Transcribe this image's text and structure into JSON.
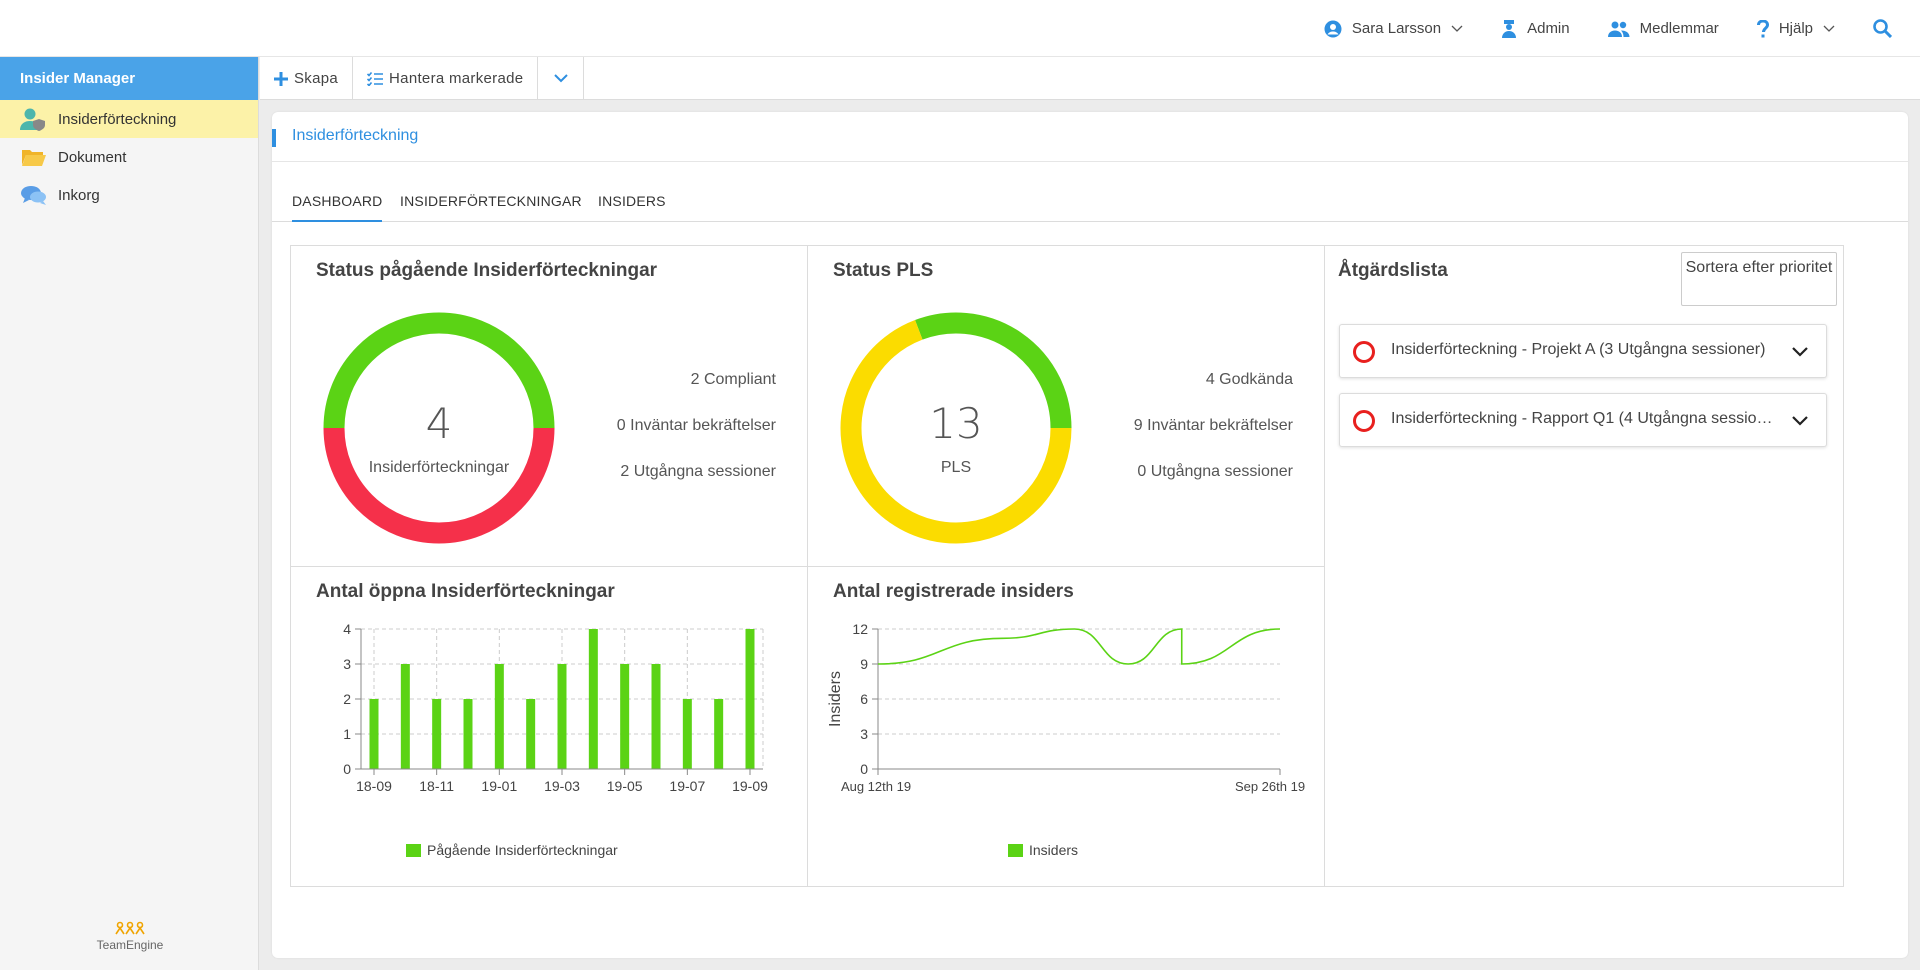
{
  "topnav": {
    "user": "Sara Larsson",
    "admin": "Admin",
    "members": "Medlemmar",
    "help": "Hjälp"
  },
  "sidebar": {
    "title": "Insider Manager",
    "items": [
      {
        "label": "Insiderförteckning",
        "icon": "user-shield-icon"
      },
      {
        "label": "Dokument",
        "icon": "folder-icon"
      },
      {
        "label": "Inkorg",
        "icon": "chat-icon"
      }
    ],
    "logo": "TeamEngine"
  },
  "toolbar": {
    "create": "Skapa",
    "manage": "Hantera markerade"
  },
  "page": {
    "title": "Insiderförteckning",
    "tabs": [
      "DASHBOARD",
      "INSIDERFÖRTECKNINGAR",
      "INSIDERS"
    ]
  },
  "status_registers": {
    "title": "Status pågående Insiderförteckningar",
    "total": "4",
    "total_label": "Insiderförteckningar",
    "lines": [
      "2 Compliant",
      "0 Inväntar bekräftelser",
      "2 Utgångna sessioner"
    ]
  },
  "status_pls": {
    "title": "Status PLS",
    "total": "13",
    "total_label": "PLS",
    "lines": [
      "4 Godkända",
      "9 Inväntar bekräftelser",
      "0 Utgångna sessioner"
    ]
  },
  "actions": {
    "title": "Åtgärdslista",
    "sort_label": "Sortera efter prioritet",
    "items": [
      "Insiderförteckning - Projekt A (3 Utgångna sessioner)",
      "Insiderförteckning - Rapport Q1 (4 Utgångna sessioner)"
    ]
  },
  "colors": {
    "green": "#5bd315",
    "red": "#f5304a",
    "yellow": "#fbdc00",
    "accent": "#2e8fe0"
  },
  "chart_data": [
    {
      "type": "pie",
      "title": "Status pågående Insiderförteckningar",
      "labels": [
        "Compliant",
        "Inväntar bekräftelser",
        "Utgångna sessioner"
      ],
      "values": [
        2,
        0,
        2
      ],
      "colors": [
        "#5bd315",
        "#fbdc00",
        "#f5304a"
      ]
    },
    {
      "type": "pie",
      "title": "Status PLS",
      "labels": [
        "Godkända",
        "Inväntar bekräftelser",
        "Utgångna sessioner"
      ],
      "values": [
        4,
        9,
        0
      ],
      "colors": [
        "#5bd315",
        "#fbdc00",
        "#f5304a"
      ]
    },
    {
      "type": "bar",
      "title": "Antal öppna Insiderförteckningar",
      "categories": [
        "18-09",
        "18-10",
        "18-11",
        "18-12",
        "19-01",
        "19-02",
        "19-03",
        "19-04",
        "19-05",
        "19-06",
        "19-07",
        "19-08",
        "19-09"
      ],
      "tick_labels": [
        "18-09",
        "18-11",
        "19-01",
        "19-03",
        "19-05",
        "19-07",
        "19-09"
      ],
      "series": [
        {
          "name": "Pågående Insiderförteckningar",
          "values": [
            2,
            3,
            2,
            2,
            3,
            2,
            3,
            4,
            3,
            3,
            2,
            2,
            4
          ]
        }
      ],
      "ylim": [
        0,
        4
      ],
      "yticks": [
        0,
        1,
        2,
        3,
        4
      ],
      "grid": true,
      "legend": "bottom"
    },
    {
      "type": "line",
      "title": "Antal registrerade insiders",
      "ylabel": "Insiders",
      "xtick_labels": [
        "Aug 12th 19",
        "Sep 26th 19"
      ],
      "x_range": [
        "2019-08-12",
        "2019-09-26"
      ],
      "series": [
        {
          "name": "Insiders",
          "x": [
            "2019-08-12",
            "2019-08-26",
            "2019-09-03",
            "2019-09-09",
            "2019-09-15",
            "2019-09-15",
            "2019-09-26"
          ],
          "values": [
            9,
            11.2,
            12,
            9,
            12,
            9,
            12
          ]
        }
      ],
      "ylim": [
        0,
        12
      ],
      "yticks": [
        0,
        3,
        6,
        9,
        12
      ],
      "grid": true,
      "legend": "bottom"
    }
  ]
}
